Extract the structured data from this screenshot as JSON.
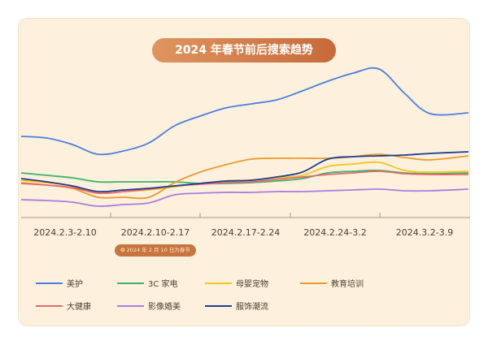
{
  "chart_data": {
    "type": "line",
    "title": "2024 年春节前后搜索趋势",
    "annotation": "2024 年 2 月 10 日为春节",
    "annotation_icon": "firework-icon",
    "categories": [
      "2024.2.3-2.10",
      "2024.2.10-2.17",
      "2024.2.17-2.24",
      "2024.2.24-3.2",
      "2024.3.2-3.9"
    ],
    "x": [
      "2024-02-03",
      "2024-02-05",
      "2024-02-07",
      "2024-02-09",
      "2024-02-11",
      "2024-02-13",
      "2024-02-15",
      "2024-02-17",
      "2024-02-19",
      "2024-02-21",
      "2024-02-23",
      "2024-02-25",
      "2024-02-27",
      "2024-02-29",
      "2024-03-02",
      "2024-03-04",
      "2024-03-06",
      "2024-03-09"
    ],
    "y_axis_shown": false,
    "grid": false,
    "legend_placement": "bottom",
    "series": [
      {
        "name": "美护",
        "color": "#4a7fe0",
        "values": [
          102,
          100,
          92,
          80,
          84,
          94,
          115,
          127,
          137,
          142,
          147,
          158,
          170,
          180,
          185,
          155,
          130,
          131
        ]
      },
      {
        "name": "3C 家电",
        "color": "#3cb46a",
        "values": [
          57,
          54,
          51,
          46,
          46,
          46,
          46,
          44,
          44,
          45,
          47,
          50,
          57,
          59,
          60,
          57,
          56,
          57
        ]
      },
      {
        "name": "母婴宠物",
        "color": "#f5c51f",
        "values": [
          48,
          45,
          41,
          32,
          34,
          36,
          40,
          44,
          46,
          48,
          51,
          54,
          65,
          68,
          70,
          60,
          58,
          59
        ]
      },
      {
        "name": "教育培训",
        "color": "#eb9a30",
        "values": [
          45,
          42,
          38,
          27,
          27,
          27,
          45,
          58,
          67,
          74,
          75,
          75,
          75,
          77,
          80,
          76,
          73,
          78
        ]
      },
      {
        "name": "大健康",
        "color": "#e8686e",
        "values": [
          44,
          42,
          39,
          32,
          34,
          37,
          41,
          43,
          45,
          46,
          49,
          52,
          55,
          57,
          59,
          56,
          55,
          55
        ]
      },
      {
        "name": "影像婚美",
        "color": "#a87de0",
        "values": [
          24,
          23,
          21,
          16,
          18,
          20,
          30,
          32,
          33,
          33,
          34,
          34,
          35,
          36,
          37,
          35,
          35,
          37
        ]
      },
      {
        "name": "服饰潮流",
        "color": "#1f3d8f",
        "values": [
          50,
          46,
          41,
          34,
          36,
          38,
          41,
          44,
          47,
          48,
          52,
          58,
          74,
          77,
          78,
          79,
          81,
          83
        ]
      }
    ]
  }
}
